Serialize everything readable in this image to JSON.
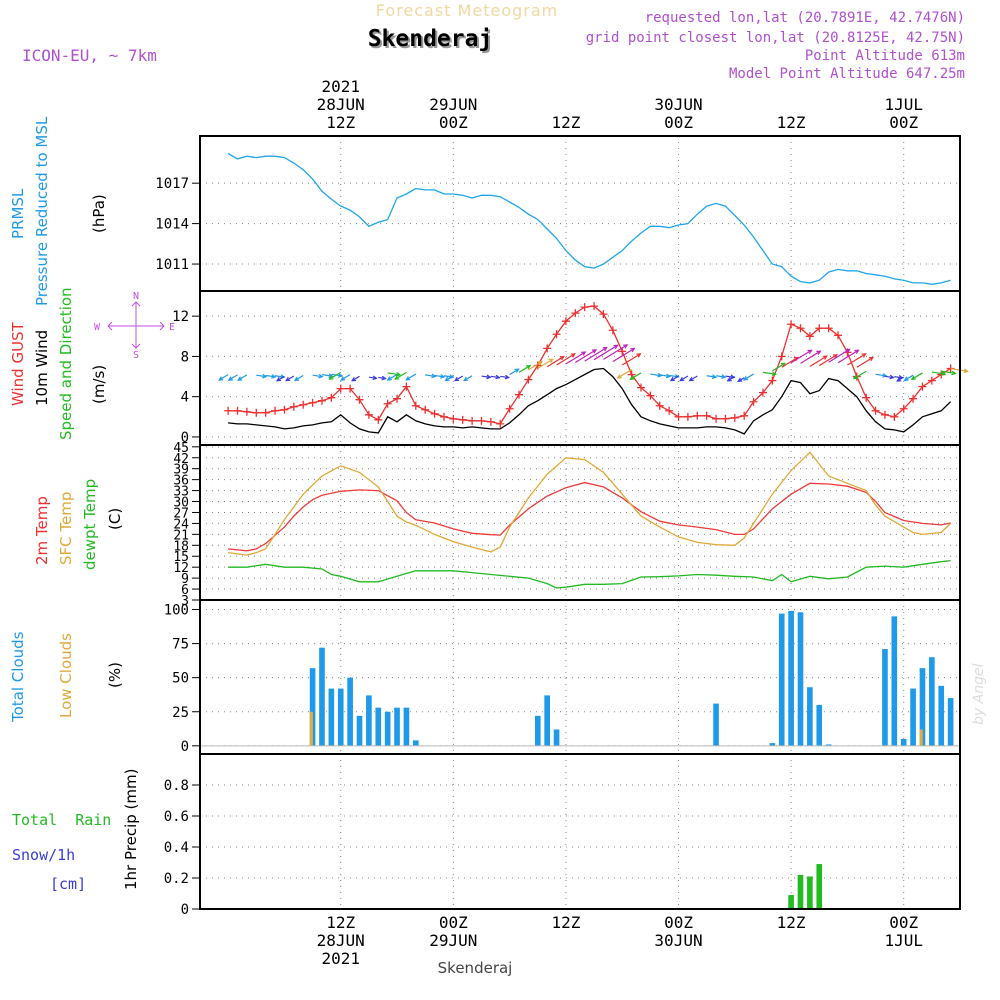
{
  "header": {
    "subtitle": "Forecast Meteogram",
    "station": "Skenderaj",
    "model": "ICON-EU, ~ 7km",
    "requested": "requested lon,lat (20.7891E, 42.7476N)",
    "gridpoint": "grid point closest lon,lat (20.8125E, 42.75N)",
    "point_alt": "Point Altitude 613m",
    "model_alt": "Model Point Altitude 647.25m",
    "footer": "Skenderaj",
    "credit": "by Angel"
  },
  "time_axis": {
    "top_labels": [
      {
        "h": 12,
        "lines": [
          "2021",
          "28JUN",
          "12Z"
        ]
      },
      {
        "h": 24,
        "lines": [
          "29JUN",
          "00Z"
        ]
      },
      {
        "h": 36,
        "lines": [
          "12Z"
        ]
      },
      {
        "h": 48,
        "lines": [
          "30JUN",
          "00Z"
        ]
      },
      {
        "h": 60,
        "lines": [
          "12Z"
        ]
      },
      {
        "h": 72,
        "lines": [
          "1JUL",
          "00Z"
        ]
      }
    ],
    "bottom_labels": [
      {
        "h": 12,
        "lines": [
          "12Z",
          "28JUN",
          "2021"
        ]
      },
      {
        "h": 24,
        "lines": [
          "00Z",
          "29JUN"
        ]
      },
      {
        "h": 36,
        "lines": [
          "12Z"
        ]
      },
      {
        "h": 48,
        "lines": [
          "00Z",
          "30JUN"
        ]
      },
      {
        "h": 60,
        "lines": [
          "12Z"
        ]
      },
      {
        "h": 72,
        "lines": [
          "00Z",
          "1JUL"
        ]
      }
    ]
  },
  "chart_data": [
    {
      "type": "line",
      "title": "PRMSL Pressure Reduced to MSL",
      "labels": [
        "PRMSL",
        "Pressure Reduced to MSL"
      ],
      "ylabel": "(hPa)",
      "ylim": [
        1009,
        1020.5
      ],
      "yticks": [
        1011,
        1014,
        1017
      ],
      "x_unit": "hours since 28JUN 00Z",
      "series": [
        {
          "name": "PRMSL",
          "color": "#1ea6ea",
          "x": [
            0,
            1,
            2,
            3,
            4,
            5,
            6,
            7,
            8,
            9,
            10,
            11,
            12,
            13,
            14,
            15,
            16,
            17,
            18,
            19,
            20,
            21,
            22,
            23,
            24,
            25,
            26,
            27,
            28,
            29,
            30,
            31,
            32,
            33,
            34,
            35,
            36,
            37,
            38,
            39,
            40,
            41,
            42,
            43,
            44,
            45,
            46,
            47,
            48,
            49,
            50,
            51,
            52,
            53,
            54,
            55,
            56,
            57,
            58,
            59,
            60,
            61,
            62,
            63,
            64,
            65,
            66,
            67,
            68,
            69,
            70,
            71,
            72,
            73,
            74,
            75,
            76,
            77
          ],
          "values": [
            1019.2,
            1018.8,
            1019.0,
            1018.9,
            1019.0,
            1019.0,
            1018.9,
            1018.5,
            1018.0,
            1017.3,
            1016.4,
            1015.8,
            1015.3,
            1015.0,
            1014.5,
            1013.8,
            1014.1,
            1014.3,
            1015.9,
            1016.2,
            1016.6,
            1016.5,
            1016.5,
            1016.2,
            1016.2,
            1016.1,
            1015.9,
            1016.1,
            1016.1,
            1016.0,
            1015.6,
            1015.2,
            1014.7,
            1014.3,
            1013.6,
            1012.9,
            1012.0,
            1011.3,
            1010.8,
            1010.7,
            1011.0,
            1011.5,
            1012.0,
            1012.7,
            1013.3,
            1013.8,
            1013.8,
            1013.7,
            1013.9,
            1014.0,
            1014.7,
            1015.3,
            1015.5,
            1015.3,
            1014.6,
            1013.9,
            1013.0,
            1012.0,
            1011.0,
            1010.8,
            1010.1,
            1009.7,
            1009.6,
            1009.8,
            1010.4,
            1010.6,
            1010.5,
            1010.5,
            1010.3,
            1010.2,
            1010.1,
            1009.9,
            1009.8,
            1009.6,
            1009.6,
            1009.5,
            1009.6,
            1009.8
          ]
        }
      ]
    },
    {
      "type": "line",
      "title": "Wind GUST / 10m Wind Speed and Direction",
      "labels": [
        "Wind GUST",
        "10m Wind",
        "Speed and Direction"
      ],
      "ylabel": "(m/s)",
      "compass": [
        "N",
        "W",
        "E",
        "S"
      ],
      "ylim": [
        -0.8,
        14.5
      ],
      "yticks": [
        0,
        4,
        8,
        12
      ],
      "series": [
        {
          "name": "Wind GUST",
          "color": "#ee3030",
          "marker": "+",
          "x": [
            0,
            1,
            2,
            3,
            4,
            5,
            6,
            7,
            8,
            9,
            10,
            11,
            12,
            13,
            14,
            15,
            16,
            17,
            18,
            19,
            20,
            21,
            22,
            23,
            24,
            25,
            26,
            27,
            28,
            29,
            30,
            31,
            32,
            33,
            34,
            35,
            36,
            37,
            38,
            39,
            40,
            41,
            42,
            43,
            44,
            45,
            46,
            47,
            48,
            49,
            50,
            51,
            52,
            53,
            54,
            55,
            56,
            57,
            58,
            59,
            60,
            61,
            62,
            63,
            64,
            65,
            66,
            67,
            68,
            69,
            70,
            71,
            72,
            73,
            74,
            75,
            76,
            77
          ],
          "values": [
            2.6,
            2.6,
            2.5,
            2.4,
            2.4,
            2.6,
            2.7,
            3.0,
            3.2,
            3.4,
            3.6,
            3.9,
            4.8,
            4.8,
            3.7,
            2.2,
            1.7,
            3.3,
            3.8,
            5.0,
            3.1,
            2.7,
            2.3,
            2.0,
            1.8,
            1.7,
            1.6,
            1.6,
            1.5,
            1.3,
            2.8,
            4.2,
            5.7,
            7.1,
            8.8,
            10.2,
            11.5,
            12.3,
            12.9,
            13.0,
            12.2,
            10.6,
            8.5,
            6.2,
            4.9,
            4.1,
            3.1,
            2.6,
            2.0,
            2.0,
            2.1,
            2.1,
            1.8,
            1.8,
            1.9,
            2.1,
            3.5,
            4.4,
            5.6,
            8.0,
            11.2,
            10.8,
            10.0,
            10.8,
            10.8,
            10.1,
            8.4,
            6.0,
            3.9,
            2.6,
            2.2,
            2.0,
            2.8,
            3.8,
            5.0,
            5.6,
            6.2,
            6.8
          ]
        },
        {
          "name": "10m Wind",
          "color": "#000000",
          "x": [
            0,
            1,
            2,
            3,
            4,
            5,
            6,
            7,
            8,
            9,
            10,
            11,
            12,
            13,
            14,
            15,
            16,
            17,
            18,
            19,
            20,
            21,
            22,
            23,
            24,
            25,
            26,
            27,
            28,
            29,
            30,
            31,
            32,
            33,
            34,
            35,
            36,
            37,
            38,
            39,
            40,
            41,
            42,
            43,
            44,
            45,
            46,
            47,
            48,
            49,
            50,
            51,
            52,
            53,
            54,
            55,
            56,
            57,
            58,
            59,
            60,
            61,
            62,
            63,
            64,
            65,
            66,
            67,
            68,
            69,
            70,
            71,
            72,
            73,
            74,
            75,
            76,
            77
          ],
          "values": [
            1.4,
            1.3,
            1.3,
            1.2,
            1.1,
            1.0,
            0.8,
            0.9,
            1.1,
            1.2,
            1.4,
            1.5,
            2.2,
            1.4,
            0.8,
            0.5,
            0.4,
            2.0,
            1.5,
            2.2,
            1.6,
            1.3,
            1.1,
            1.0,
            1.0,
            0.9,
            1.0,
            0.9,
            0.8,
            0.8,
            1.4,
            2.2,
            3.1,
            3.6,
            4.2,
            4.8,
            5.2,
            5.7,
            6.2,
            6.7,
            6.8,
            6.0,
            4.8,
            3.2,
            2.0,
            1.6,
            1.3,
            1.1,
            0.9,
            0.9,
            0.9,
            1.0,
            1.0,
            0.9,
            0.7,
            0.3,
            1.6,
            2.2,
            2.7,
            4.0,
            5.6,
            5.4,
            4.3,
            4.6,
            5.8,
            5.6,
            4.8,
            4.0,
            2.6,
            1.5,
            0.8,
            0.7,
            0.5,
            1.2,
            2.0,
            2.3,
            2.6,
            3.5
          ]
        }
      ]
    },
    {
      "type": "line",
      "title": "Temperatures",
      "labels": [
        "2m Temp",
        "SFC Temp",
        "dewpt Temp"
      ],
      "ylabel": "(C)",
      "ylim": [
        3,
        45.5
      ],
      "yticks": [
        3,
        6,
        9,
        12,
        15,
        18,
        21,
        24,
        27,
        30,
        33,
        36,
        39,
        42,
        45
      ],
      "series": [
        {
          "name": "2m Temp",
          "color": "#ee3b3b",
          "x": [
            0,
            2,
            3,
            4,
            6,
            7,
            8,
            9,
            10,
            12,
            14,
            16,
            18,
            19,
            20,
            22,
            24,
            26,
            28,
            29,
            30,
            32,
            34,
            36,
            38,
            40,
            42,
            44,
            46,
            48,
            50,
            52,
            54,
            55,
            56,
            58,
            60,
            62,
            64,
            66,
            68,
            69,
            70,
            72,
            74,
            76,
            77
          ],
          "values": [
            17.0,
            16.5,
            17.0,
            18.5,
            23.0,
            26.0,
            28.5,
            30.5,
            31.7,
            32.8,
            33.2,
            33.0,
            30.2,
            27.0,
            25.0,
            24.1,
            22.5,
            21.3,
            20.9,
            20.8,
            23.5,
            28.0,
            31.5,
            33.8,
            35.2,
            34.0,
            31.0,
            27.2,
            24.6,
            23.6,
            23.0,
            22.3,
            21.0,
            21.0,
            22.5,
            28.0,
            32.0,
            35.0,
            34.8,
            34.2,
            32.5,
            30.0,
            27.0,
            24.8,
            24.0,
            23.6,
            24.1
          ]
        },
        {
          "name": "SFC Temp",
          "color": "#e0a838",
          "x": [
            0,
            2,
            3,
            4,
            6,
            8,
            10,
            12,
            14,
            16,
            17,
            18,
            19,
            20,
            22,
            24,
            26,
            28,
            29,
            30,
            32,
            34,
            36,
            38,
            40,
            42,
            44,
            46,
            48,
            50,
            52,
            54,
            55,
            56,
            58,
            60,
            62,
            64,
            66,
            68,
            69,
            70,
            72,
            73,
            74,
            76,
            77
          ],
          "values": [
            16.0,
            15.3,
            16.0,
            17.0,
            25.0,
            32.0,
            37.0,
            39.8,
            38.0,
            34.0,
            30.0,
            26.0,
            24.4,
            23.5,
            21.0,
            19.0,
            17.5,
            16.2,
            17.5,
            23.0,
            31.0,
            37.5,
            42.0,
            41.5,
            38.0,
            32.0,
            26.0,
            23.0,
            20.3,
            18.8,
            18.2,
            18.0,
            20.0,
            24.0,
            32.0,
            38.5,
            43.5,
            37.0,
            35.0,
            33.0,
            29.0,
            26.0,
            23.0,
            21.5,
            21.0,
            21.5,
            24.0
          ]
        },
        {
          "name": "dewpt Temp",
          "color": "#22b822",
          "x": [
            0,
            2,
            4,
            6,
            8,
            10,
            11,
            12,
            14,
            16,
            18,
            20,
            22,
            24,
            26,
            28,
            30,
            32,
            34,
            35,
            36,
            38,
            40,
            42,
            44,
            46,
            48,
            50,
            52,
            54,
            56,
            58,
            59,
            60,
            62,
            64,
            66,
            68,
            70,
            72,
            74,
            76,
            77
          ],
          "values": [
            12.0,
            12.0,
            12.8,
            12.0,
            12.0,
            11.5,
            10.0,
            9.5,
            8.0,
            8.0,
            9.5,
            11.0,
            11.0,
            11.0,
            10.5,
            10.0,
            9.5,
            9.0,
            7.5,
            6.3,
            6.5,
            7.3,
            7.3,
            7.5,
            9.3,
            9.4,
            9.6,
            10.0,
            9.8,
            9.5,
            9.3,
            8.3,
            10.0,
            8.0,
            9.5,
            8.8,
            9.3,
            12.0,
            12.3,
            12.0,
            12.8,
            13.5,
            13.8
          ]
        }
      ]
    },
    {
      "type": "bar",
      "title": "Clouds",
      "labels": [
        "Total Clouds",
        "Low Clouds"
      ],
      "ylabel": "(%)",
      "ylim": [
        -6,
        107
      ],
      "yticks": [
        0,
        25,
        50,
        75,
        100
      ],
      "series": [
        {
          "name": "Total Clouds",
          "color": "#1e9ae8",
          "x": [
            9,
            10,
            11,
            12,
            13,
            14,
            15,
            16,
            17,
            18,
            19,
            20,
            33,
            34,
            35,
            52,
            58,
            59,
            60,
            61,
            62,
            63,
            64,
            70,
            71,
            72,
            73,
            74,
            75,
            76,
            77
          ],
          "values": [
            57,
            72,
            42,
            42,
            50,
            22,
            37,
            28,
            25,
            28,
            28,
            4,
            22,
            37,
            12,
            31,
            2,
            97,
            99,
            98,
            43,
            30,
            1,
            71,
            95,
            5,
            42,
            57,
            65,
            44,
            35
          ]
        },
        {
          "name": "Low Clouds",
          "color": "#e2ac40",
          "x": [
            9,
            74
          ],
          "values": [
            25,
            12
          ]
        }
      ]
    },
    {
      "type": "bar",
      "title": "1hr Precip",
      "labels": [
        "Total  Rain",
        "Snow/1h",
        "[cm]"
      ],
      "ylabel": "1hr Precip (mm)",
      "ylim": [
        0,
        1.0
      ],
      "yticks": [
        0,
        0.2,
        0.4,
        0.6,
        0.8
      ],
      "series": [
        {
          "name": "Total Rain",
          "color": "#22bb22",
          "x": [
            60,
            61,
            62,
            63
          ],
          "values": [
            0.09,
            0.22,
            0.21,
            0.29
          ]
        }
      ]
    }
  ]
}
